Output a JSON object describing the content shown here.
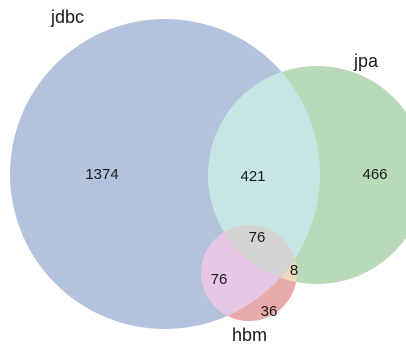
{
  "sets": [
    {
      "key": "jdbc",
      "label": "jdbc",
      "color": "#b3c3dd"
    },
    {
      "key": "jpa",
      "label": "jpa",
      "color": "#b9dab9"
    },
    {
      "key": "hbm",
      "label": "hbm",
      "color": "#e7a9a9"
    }
  ],
  "overlap_colors": {
    "jdbc_jpa": "#c6e6e6",
    "jdbc_hbm": "#e6c8e6",
    "jpa_hbm": "#ead8b8",
    "all": "#d4d4d4"
  },
  "regions": {
    "jdbc_only": "1374",
    "jpa_only": "466",
    "jdbc_jpa": "421",
    "all": "76",
    "jdbc_hbm": "76",
    "jpa_hbm": "8",
    "hbm_only": "36"
  }
}
